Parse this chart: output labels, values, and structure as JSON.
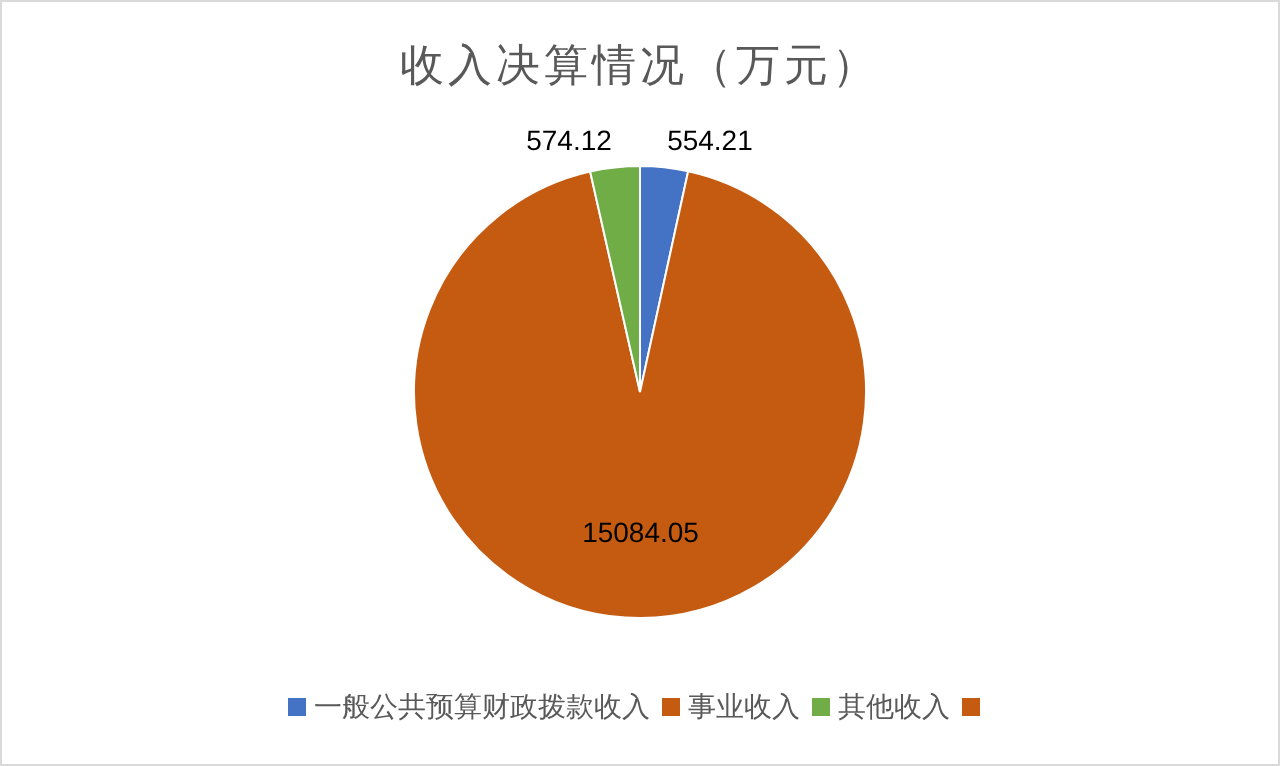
{
  "chart_data": {
    "type": "pie",
    "title": "收入决算情况（万元）",
    "categories": [
      "一般公共预算财政拨款收入",
      "事业收入",
      "其他收入",
      null
    ],
    "values": [
      554.21,
      15084.05,
      574.12,
      0
    ],
    "colors": [
      "#4472c4",
      "#c55a11",
      "#70ad47",
      "#c55a11"
    ],
    "value_labels": [
      "554.21",
      "15084.05",
      "574.12",
      null
    ],
    "legend": "bottom"
  }
}
